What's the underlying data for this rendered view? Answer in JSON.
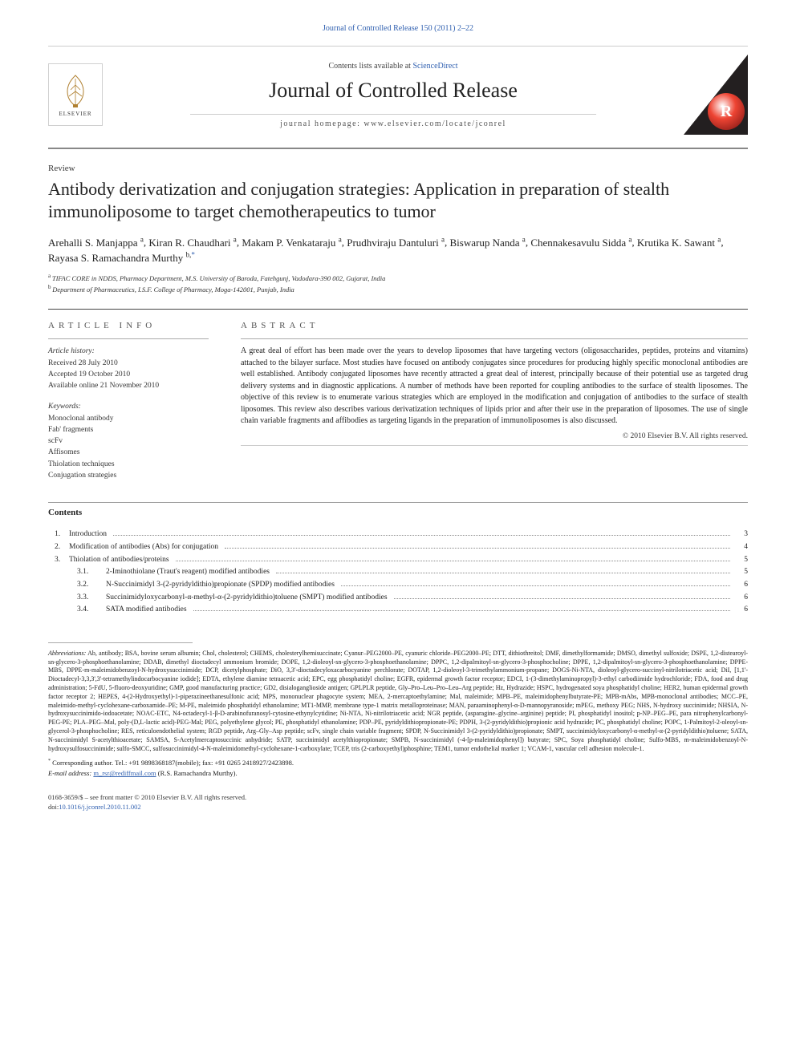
{
  "colors": {
    "link": "#3060b0",
    "text": "#1a1a1a",
    "rule": "#888888",
    "cover_bg": "#231f20",
    "cover_ball": "#c62828"
  },
  "topLink": "Journal of Controlled Release 150 (2011) 2–22",
  "masthead": {
    "elsevier": "ELSEVIER",
    "contentsPrefix": "Contents lists available at ",
    "contentsLink": "ScienceDirect",
    "journalTitle": "Journal of Controlled Release",
    "homepagePrefix": "journal homepage: ",
    "homepageUrl": "www.elsevier.com/locate/jconrel",
    "coverLetter": "R"
  },
  "reviewLabel": "Review",
  "articleTitle": "Antibody derivatization and conjugation strategies: Application in preparation of stealth immunoliposome to target chemotherapeutics to tumor",
  "authors": [
    {
      "name": "Arehalli S. Manjappa",
      "sup": "a"
    },
    {
      "name": "Kiran R. Chaudhari",
      "sup": "a"
    },
    {
      "name": "Makam P. Venkataraju",
      "sup": "a"
    },
    {
      "name": "Prudhviraju Dantuluri",
      "sup": "a"
    },
    {
      "name": "Biswarup Nanda",
      "sup": "a"
    },
    {
      "name": "Chennakesavulu Sidda",
      "sup": "a"
    },
    {
      "name": "Krutika K. Sawant",
      "sup": "a"
    },
    {
      "name": "Rayasa S. Ramachandra Murthy",
      "sup": "b,",
      "corr": true
    }
  ],
  "affiliations": [
    {
      "sup": "a",
      "text": "TIFAC CORE in NDDS, Pharmacy Department, M.S. University of Baroda, Fatehgunj, Vadodara-390 002, Gujarat, India"
    },
    {
      "sup": "b",
      "text": "Department of Pharmaceutics, I.S.F. College of Pharmacy, Moga-142001, Punjab, India"
    }
  ],
  "articleInfo": {
    "heading": "ARTICLE INFO",
    "historyLabel": "Article history:",
    "history": [
      "Received 28 July 2010",
      "Accepted 19 October 2010",
      "Available online 21 November 2010"
    ],
    "keywordsLabel": "Keywords:",
    "keywords": [
      "Monoclonal antibody",
      "Fab' fragments",
      "scFv",
      "Affisomes",
      "Thiolation techniques",
      "Conjugation strategies"
    ]
  },
  "abstract": {
    "heading": "ABSTRACT",
    "text": "A great deal of effort has been made over the years to develop liposomes that have targeting vectors (oligosaccharides, peptides, proteins and vitamins) attached to the bilayer surface. Most studies have focused on antibody conjugates since procedures for producing highly specific monoclonal antibodies are well established. Antibody conjugated liposomes have recently attracted a great deal of interest, principally because of their potential use as targeted drug delivery systems and in diagnostic applications. A number of methods have been reported for coupling antibodies to the surface of stealth liposomes. The objective of this review is to enumerate various strategies which are employed in the modification and conjugation of antibodies to the surface of stealth liposomes. This review also describes various derivatization techniques of lipids prior and after their use in the preparation of liposomes. The use of single chain variable fragments and affibodies as targeting ligands in the preparation of immunoliposomes is also discussed.",
    "copyright": "© 2010 Elsevier B.V. All rights reserved."
  },
  "contents": {
    "heading": "Contents",
    "items": [
      {
        "num": "1.",
        "sub": "",
        "label": "Introduction",
        "page": "3"
      },
      {
        "num": "2.",
        "sub": "",
        "label": "Modification of antibodies (Abs) for conjugation",
        "page": "4"
      },
      {
        "num": "3.",
        "sub": "",
        "label": "Thiolation of antibodies/proteins",
        "page": "5"
      },
      {
        "num": "",
        "sub": "3.1.",
        "label": "2-Iminothiolane (Traut's reagent) modified antibodies",
        "page": "5"
      },
      {
        "num": "",
        "sub": "3.2.",
        "label": "N-Succinimidyl 3-(2-pyridyldithio)propionate (SPDP) modified antibodies",
        "page": "6"
      },
      {
        "num": "",
        "sub": "3.3.",
        "label": "Succinimidyloxycarbonyl-α-methyl-α-(2-pyridyldithio)toluene (SMPT) modified antibodies",
        "page": "6"
      },
      {
        "num": "",
        "sub": "3.4.",
        "label": "SATA modified antibodies",
        "page": "6"
      }
    ]
  },
  "abbreviations": {
    "lead": "Abbreviations:",
    "text": " Ab, antibody; BSA, bovine serum albumin; Chol, cholesterol; CHEMS, cholesterylhemisuccinate; Cyanur–PEG2000–PE, cyanuric chloride–PEG2000–PE; DTT, dithiothreitol; DMF, dimethylformamide; DMSO, dimethyl sulfoxide; DSPE, 1,2-distearoyl-sn-glycero-3-phosphoethanolamine; DDAB, dimethyl dioctadecyl ammonium bromide; DOPE, 1,2-dioleoyl-sn-glycero-3-phosphoethanolamine; DPPC, 1,2-dipalmitoyl-sn-glycero-3-phosphocholine; DPPE, 1,2-dipalmitoyl-sn-glycero-3-phosphoethanolamine; DPPE-MBS, DPPE-m-maleimidobenzoyl-N-hydroxysuccinimide; DCP, dicetylphosphate; DiO, 3,3′-dioctadecyloxacarbocyanine perchlorate; DOTAP, 1,2-dioleoyl-3-trimethylammonium-propane; DOGS-Ni-NTA, dioleoyl-glycero-succinyl-nitrilotriacetic acid; DiI, [1,1'-Dioctadecyl-3,3,3',3'-tetramethylindocarbocyanine iodide]; EDTA, ethylene diamine tetraacetic acid; EPC, egg phosphatidyl choline; EGFR, epidermal growth factor receptor; EDCI, 1-(3-dimethylaminopropyl)-3-ethyl carbodiimide hydrochloride; FDA, food and drug administration; 5-FdU, 5-fluoro-deoxyuridine; GMP, good manufacturing practice; GD2, disialoganglioside antigen; GPLPLR peptide, Gly–Pro–Leu–Pro–Leu–Arg peptide; Hz, Hydrazide; HSPC, hydrogenated soya phosphatidyl choline; HER2, human epidermal growth factor receptor 2; HEPES, 4-(2-Hydroxyethyl)-1-piperazineethanesulfonic acid; MPS, mononuclear phagocyte system; MEA, 2-mercaptoethylamine; Mal, maleimide; MPB–PE, maleimidophenylbutyrate-PE; MPB-mAbs, MPB-monoclonal antibodies; MCC–PE, maleimido-methyl-cyclohexane-carboxamide–PE; M-PE, maleimido phosphatidyl ethanolamine; MT1-MMP, membrane type-1 matrix metalloproteinase; MAN, paraaminophenyl-α-D-mannopyranoside; mPEG, methoxy PEG; NHS, N-hydroxy succinimide; NHSIA, N-hydroxysuccinimido-iodoacetate; NOAC-ETC, N4-octadecyl-1-β-D-arabinofuranosyl-cytosine-ethynylcytidine; Ni-NTA, Ni-nitrilotriacetic acid; NGR peptide, (asparagine–glycine–arginine) peptide; PI, phosphatidyl inositol; p-NP–PEG–PE, para nitrophenylcarbonyl-PEG-PE; PLA–PEG–Mal, poly-(D,L-lactic acid)-PEG-Mal; PEG, polyethylene glycol; PE, phosphatidyl ethanolamine; PDP–PE, pyridyldithiopropionate-PE; PDPH, 3-(2-pyridyldithio)propionic acid hydrazide; PC, phosphatidyl choline; POPC, 1-Palmitoyl-2-oleoyl-sn-glycerol-3-phosphocholine; RES, reticuloendothelial system; RGD peptide, Arg–Gly–Asp peptide; scFv, single chain variable fragment; SPDP, N-Succinimidyl 3-(2-pyridyldithio)propionate; SMPT, succinimidyloxycarbonyl-α-methyl-α-(2-pyridyldithio)toluene; SATA, N-succinimidyl S-acetylthioacetate; SAMSA, S-Acetylmercaptosuccinic anhydride; SATP, succinimidyl acetylthiopropionate; SMPB, N-succinimidyl (-4-[p-maleimidophenyl]) butyrate; SPC, Soya phosphatidyl choline; Sulfo-MBS, m-maleimidobenzoyl-N-hydroxysulfosuccinimide; sulfo-SMCC, sulfosuccinimidyl-4-N-maleimidomethyl-cyclohexane-1-carboxylate; TCEP, tris (2-carboxyethyl)phosphine; TEM1, tumor endothelial marker 1; VCAM-1, vascular cell adhesion molecule-1."
  },
  "corresponding": {
    "star": "*",
    "line": "Corresponding author. Tel.: +91 9898368187(mobile); fax: +91 0265 2418927/2423898.",
    "emailLabel": "E-mail address:",
    "email": "m_rsr@rediffmail.com",
    "emailSuffix": " (R.S. Ramachandra Murthy)."
  },
  "copyDoi": {
    "line1": "0168-3659/$ – see front matter © 2010 Elsevier B.V. All rights reserved.",
    "doiPrefix": "doi:",
    "doi": "10.1016/j.jconrel.2010.11.002"
  }
}
